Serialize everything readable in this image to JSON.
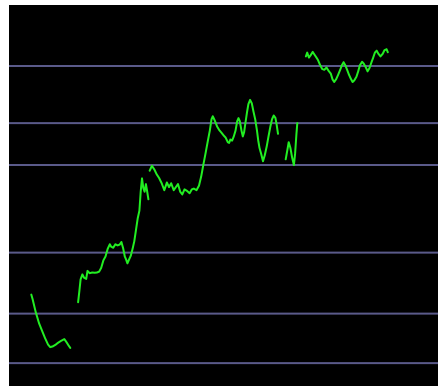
{
  "colors": {
    "background": "#000000",
    "frame": "#ffffff",
    "gridline": "#5a5a8a",
    "series": "#22ee22"
  },
  "chart_data": {
    "type": "line",
    "title": "",
    "xlabel": "",
    "ylabel": "",
    "grid": true,
    "legend": "none",
    "xlim": [
      0,
      100
    ],
    "ylim": [
      0,
      100
    ],
    "gridlines_y": [
      6,
      19,
      35,
      58,
      69,
      84
    ],
    "series": [
      {
        "segments": [
          [
            [
              5.2,
              24
            ],
            [
              5.5,
              22.8
            ],
            [
              6.2,
              19.5
            ],
            [
              7,
              16.5
            ],
            [
              7.8,
              14.2
            ],
            [
              8.4,
              12.6
            ],
            [
              9.1,
              10.9
            ],
            [
              9.6,
              10.2
            ],
            [
              10.2,
              10.4
            ],
            [
              10.8,
              10.8
            ],
            [
              11.5,
              11.4
            ],
            [
              12.2,
              11.9
            ],
            [
              12.9,
              12.3
            ],
            [
              13.4,
              11.5
            ],
            [
              13.8,
              10.8
            ],
            [
              14.3,
              10.0
            ]
          ],
          [
            [
              16.1,
              22
            ],
            [
              16.4,
              25
            ],
            [
              16.7,
              28
            ],
            [
              17.1,
              29.3
            ],
            [
              17.5,
              28.4
            ],
            [
              18,
              28.1
            ],
            [
              18.3,
              30.2
            ],
            [
              18.8,
              29.6
            ],
            [
              19.4,
              29.8
            ],
            [
              20,
              29.7
            ],
            [
              20.5,
              29.8
            ],
            [
              21,
              30
            ],
            [
              21.5,
              31
            ],
            [
              22,
              33
            ],
            [
              22.5,
              34
            ],
            [
              23,
              36
            ],
            [
              23.5,
              37.2
            ],
            [
              23.8,
              36.6
            ],
            [
              24.3,
              36.3
            ],
            [
              24.8,
              37.2
            ],
            [
              25.3,
              36.9
            ],
            [
              25.8,
              37.1
            ],
            [
              26.2,
              37.8
            ],
            [
              26.6,
              36.2
            ],
            [
              27,
              34
            ],
            [
              27.3,
              33.2
            ],
            [
              27.6,
              32.2
            ],
            [
              27.9,
              33
            ],
            [
              28.4,
              34.2
            ],
            [
              28.8,
              36
            ],
            [
              29.2,
              38
            ],
            [
              29.6,
              41
            ],
            [
              30,
              44
            ],
            [
              30.4,
              46
            ],
            [
              30.7,
              51
            ],
            [
              31,
              54.5
            ],
            [
              31.3,
              52
            ],
            [
              31.6,
              51
            ],
            [
              31.9,
              53
            ],
            [
              32.2,
              51.2
            ],
            [
              32.5,
              49
            ]
          ],
          [
            [
              32.8,
              56.5
            ],
            [
              33.3,
              57.8
            ],
            [
              33.9,
              56.8
            ],
            [
              34.4,
              55.6
            ],
            [
              35,
              54.6
            ],
            [
              35.6,
              53.2
            ],
            [
              36.2,
              51.4
            ],
            [
              36.8,
              53.4
            ],
            [
              37.3,
              52.2
            ],
            [
              37.8,
              53.2
            ],
            [
              38.4,
              51.4
            ],
            [
              38.9,
              52.2
            ],
            [
              39.4,
              53
            ],
            [
              39.9,
              51
            ],
            [
              40.4,
              50.3
            ],
            [
              40.9,
              51.6
            ],
            [
              41.5,
              51.2
            ],
            [
              42.1,
              50.6
            ],
            [
              42.6,
              51.6
            ],
            [
              43.1,
              51.8
            ],
            [
              43.7,
              51.4
            ],
            [
              44.3,
              52.6
            ],
            [
              44.8,
              55
            ],
            [
              45.3,
              58
            ],
            [
              45.8,
              61
            ],
            [
              46.3,
              64
            ],
            [
              46.8,
              67
            ],
            [
              47.2,
              70
            ],
            [
              47.5,
              70.8
            ],
            [
              48,
              69.6
            ],
            [
              48.5,
              68.1
            ],
            [
              49,
              67.2
            ],
            [
              49.5,
              66.5
            ],
            [
              50,
              65.8
            ],
            [
              50.5,
              65.2
            ],
            [
              51,
              64
            ],
            [
              51.3,
              63.8
            ],
            [
              51.6,
              64.7
            ],
            [
              52,
              64.4
            ],
            [
              52.4,
              65.5
            ],
            [
              52.8,
              67
            ],
            [
              53.2,
              69.5
            ],
            [
              53.5,
              70.3
            ],
            [
              53.8,
              69.5
            ],
            [
              54.2,
              67
            ],
            [
              54.5,
              65.5
            ],
            [
              54.8,
              66.6
            ],
            [
              55.1,
              69
            ],
            [
              55.5,
              72
            ],
            [
              55.8,
              74
            ],
            [
              56.2,
              75.1
            ],
            [
              56.6,
              74.2
            ],
            [
              57,
              72
            ],
            [
              57.4,
              70
            ],
            [
              57.8,
              67
            ],
            [
              58.1,
              64.5
            ],
            [
              58.4,
              62.5
            ],
            [
              58.8,
              60.8
            ],
            [
              59.2,
              59
            ],
            [
              59.6,
              60.5
            ],
            [
              60.1,
              63
            ],
            [
              60.5,
              65.5
            ],
            [
              60.9,
              68
            ],
            [
              61.3,
              70
            ],
            [
              61.7,
              71
            ],
            [
              62.1,
              70.4
            ],
            [
              62.4,
              68.5
            ],
            [
              62.7,
              66.2
            ]
          ],
          [
            [
              64.5,
              59.5
            ],
            [
              64.9,
              62
            ],
            [
              65.2,
              64
            ],
            [
              65.6,
              62.5
            ],
            [
              66,
              60
            ],
            [
              66.4,
              58
            ],
            [
              66.7,
              61
            ],
            [
              67,
              66
            ],
            [
              67.2,
              69
            ]
          ],
          [
            [
              69.2,
              86.5
            ],
            [
              69.5,
              87.5
            ],
            [
              69.9,
              86.2
            ],
            [
              70.3,
              86.8
            ],
            [
              70.8,
              87.7
            ],
            [
              71.2,
              87
            ],
            [
              71.6,
              86.3
            ],
            [
              72,
              85.6
            ],
            [
              72.5,
              84.3
            ],
            [
              73,
              83.2
            ],
            [
              73.5,
              83
            ],
            [
              74,
              83.6
            ],
            [
              74.5,
              82.7
            ],
            [
              75,
              82
            ],
            [
              75.4,
              80.5
            ],
            [
              75.8,
              79.8
            ],
            [
              76.3,
              80.6
            ],
            [
              76.7,
              81.6
            ],
            [
              77.2,
              83
            ],
            [
              77.6,
              84.2
            ],
            [
              78,
              85
            ],
            [
              78.4,
              84.2
            ],
            [
              78.8,
              83
            ],
            [
              79.2,
              81.8
            ],
            [
              79.7,
              80.6
            ],
            [
              80.1,
              79.8
            ],
            [
              80.5,
              80.2
            ],
            [
              81,
              81.2
            ],
            [
              81.4,
              82.6
            ],
            [
              81.8,
              84.2
            ],
            [
              82.3,
              85.1
            ],
            [
              82.7,
              84.6
            ],
            [
              83.1,
              83.8
            ],
            [
              83.6,
              82.6
            ],
            [
              84,
              83.4
            ],
            [
              84.5,
              85
            ],
            [
              84.9,
              86.2
            ],
            [
              85.3,
              87.5
            ],
            [
              85.7,
              88
            ],
            [
              86.1,
              87.2
            ],
            [
              86.6,
              86.5
            ],
            [
              87.1,
              87.2
            ],
            [
              87.5,
              88.1
            ],
            [
              88,
              88.4
            ],
            [
              88.3,
              87.6
            ]
          ]
        ]
      }
    ]
  }
}
